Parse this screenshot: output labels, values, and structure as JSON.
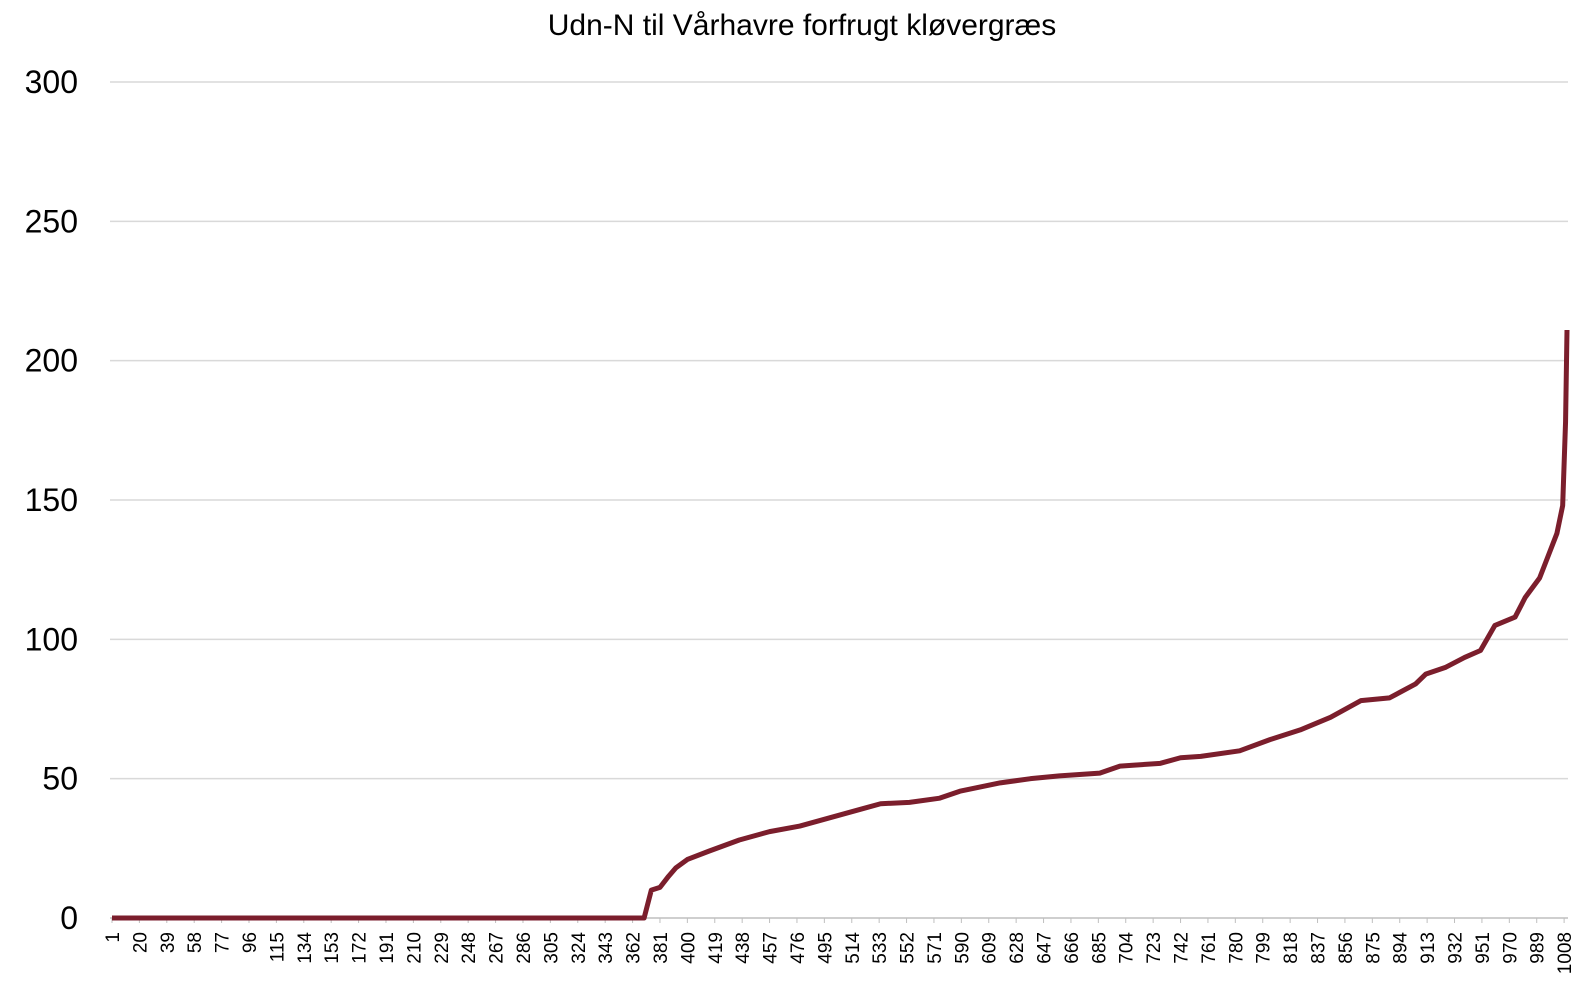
{
  "chart_data": {
    "type": "line",
    "title": "Udn-N til Vårhavre forfrugt kløvergræs",
    "x": [
      1,
      370,
      375,
      381,
      387,
      392,
      400,
      415,
      436,
      457,
      478,
      499,
      520,
      534,
      554,
      575,
      589,
      617,
      638,
      658,
      686,
      700,
      728,
      742,
      756,
      783,
      804,
      825,
      846,
      867,
      887,
      905,
      912,
      926,
      939,
      950,
      960,
      974,
      981,
      991,
      997,
      1003,
      1007,
      1009,
      1010
    ],
    "series": [
      {
        "color": "#7b1e2c",
        "values": [
          0,
          0,
          10,
          11,
          15,
          18,
          21,
          24,
          28,
          31,
          33,
          36,
          39,
          41,
          41.5,
          43,
          45.5,
          48.5,
          50,
          51,
          52,
          54.5,
          55.5,
          57.5,
          58,
          60,
          64,
          67.5,
          72,
          78,
          79,
          84,
          87.5,
          90,
          93.5,
          96,
          105,
          108,
          115,
          122,
          130,
          138,
          148,
          178,
          211
        ]
      }
    ],
    "xlim": [
      1,
      1010
    ],
    "xticks": [
      1,
      20,
      39,
      58,
      77,
      96,
      115,
      134,
      153,
      172,
      191,
      210,
      229,
      248,
      267,
      286,
      305,
      324,
      343,
      362,
      381,
      400,
      419,
      438,
      457,
      476,
      495,
      514,
      533,
      552,
      571,
      590,
      609,
      628,
      647,
      666,
      685,
      704,
      723,
      742,
      761,
      780,
      799,
      818,
      837,
      856,
      875,
      894,
      913,
      932,
      951,
      970,
      989,
      1008
    ],
    "ylim": [
      0,
      300
    ],
    "yticks": [
      0,
      50,
      100,
      150,
      200,
      250,
      300
    ],
    "grid": true
  }
}
